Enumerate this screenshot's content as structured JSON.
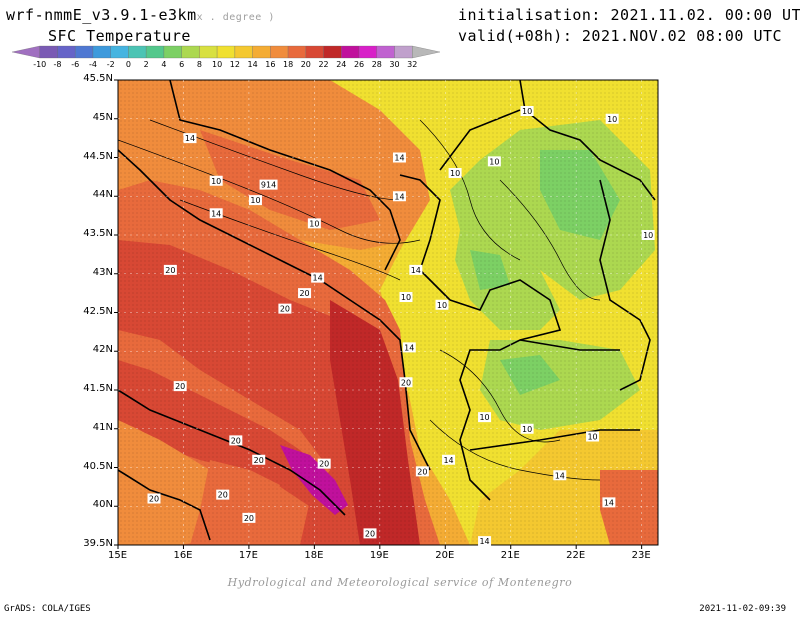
{
  "header": {
    "model": "wrf-nmmE_v3.9.1-e3km",
    "model_suffix": "x . degree )",
    "field": "SFC Temperature",
    "init": "initialisation: 2021.11.02. 00:00 UTC",
    "valid": "valid(+08h): 2021.NOV.02 08:00 UTC"
  },
  "colorbar": {
    "labels": [
      "-10",
      "-8",
      "-6",
      "-4",
      "-2",
      "0",
      "2",
      "4",
      "6",
      "8",
      "10",
      "12",
      "14",
      "16",
      "18",
      "20",
      "22",
      "24",
      "26",
      "28",
      "30",
      "32"
    ],
    "colors": [
      "#a070c0",
      "#7a5ab4",
      "#6664c8",
      "#4f78d2",
      "#3e9adc",
      "#46b4e0",
      "#4cc4b4",
      "#54c88c",
      "#7cd064",
      "#acd850",
      "#d8e040",
      "#f0e030",
      "#f4c830",
      "#f4ac34",
      "#f08c3c",
      "#e86a3c",
      "#d84834",
      "#c02828",
      "#c0109c",
      "#d820c8",
      "#c062d0",
      "#c0a0cc",
      "#b8b8b8"
    ]
  },
  "map": {
    "lat_labels": [
      "45.5N",
      "45N",
      "44.5N",
      "44N",
      "43.5N",
      "43N",
      "42.5N",
      "42N",
      "41.5N",
      "41N",
      "40.5N",
      "40N",
      "39.5N"
    ],
    "lon_labels": [
      "15E",
      "16E",
      "17E",
      "18E",
      "19E",
      "20E",
      "21E",
      "22E",
      "23E"
    ],
    "contour_labels": [
      {
        "t": "14",
        "lon": 16.1,
        "lat": 44.75
      },
      {
        "t": "10",
        "lon": 16.5,
        "lat": 44.2
      },
      {
        "t": "914",
        "lon": 17.3,
        "lat": 44.15
      },
      {
        "t": "10",
        "lon": 17.1,
        "lat": 43.95
      },
      {
        "t": "14",
        "lon": 16.5,
        "lat": 43.78
      },
      {
        "t": "14",
        "lon": 19.3,
        "lat": 44.5
      },
      {
        "t": "10",
        "lon": 20.15,
        "lat": 44.3
      },
      {
        "t": "14",
        "lon": 19.3,
        "lat": 44.0
      },
      {
        "t": "10",
        "lon": 18.0,
        "lat": 43.65
      },
      {
        "t": "14",
        "lon": 19.55,
        "lat": 43.05
      },
      {
        "t": "14",
        "lon": 18.05,
        "lat": 42.95
      },
      {
        "t": "10",
        "lon": 19.4,
        "lat": 42.7
      },
      {
        "t": "10",
        "lon": 19.95,
        "lat": 42.6
      },
      {
        "t": "20",
        "lon": 17.85,
        "lat": 42.75
      },
      {
        "t": "20",
        "lon": 17.55,
        "lat": 42.55
      },
      {
        "t": "20",
        "lon": 15.8,
        "lat": 43.05
      },
      {
        "t": "14",
        "lon": 19.45,
        "lat": 42.05
      },
      {
        "t": "20",
        "lon": 19.4,
        "lat": 41.6
      },
      {
        "t": "20",
        "lon": 15.95,
        "lat": 41.55
      },
      {
        "t": "10",
        "lon": 20.6,
        "lat": 41.15
      },
      {
        "t": "10",
        "lon": 21.25,
        "lat": 41.0
      },
      {
        "t": "10",
        "lon": 22.25,
        "lat": 40.9
      },
      {
        "t": "20",
        "lon": 16.8,
        "lat": 40.85
      },
      {
        "t": "20",
        "lon": 17.15,
        "lat": 40.6
      },
      {
        "t": "20",
        "lon": 18.15,
        "lat": 40.55
      },
      {
        "t": "20",
        "lon": 19.65,
        "lat": 40.45
      },
      {
        "t": "14",
        "lon": 20.05,
        "lat": 40.6
      },
      {
        "t": "14",
        "lon": 21.75,
        "lat": 40.4
      },
      {
        "t": "14",
        "lon": 22.5,
        "lat": 40.05
      },
      {
        "t": "20",
        "lon": 16.6,
        "lat": 40.15
      },
      {
        "t": "20",
        "lon": 15.55,
        "lat": 40.1
      },
      {
        "t": "20",
        "lon": 17.0,
        "lat": 39.85
      },
      {
        "t": "20",
        "lon": 18.85,
        "lat": 39.65
      },
      {
        "t": "14",
        "lon": 20.6,
        "lat": 39.55
      },
      {
        "t": "10",
        "lon": 21.25,
        "lat": 45.1
      },
      {
        "t": "10",
        "lon": 22.55,
        "lat": 45.0
      },
      {
        "t": "10",
        "lon": 20.75,
        "lat": 44.45
      },
      {
        "t": "10",
        "lon": 23.1,
        "lat": 43.5
      }
    ]
  },
  "footer": {
    "credit": "Hydrological and Meteorological service of Montenegro",
    "left": "GrADS: COLA/IGES",
    "right": "2021-11-02-09:39"
  }
}
